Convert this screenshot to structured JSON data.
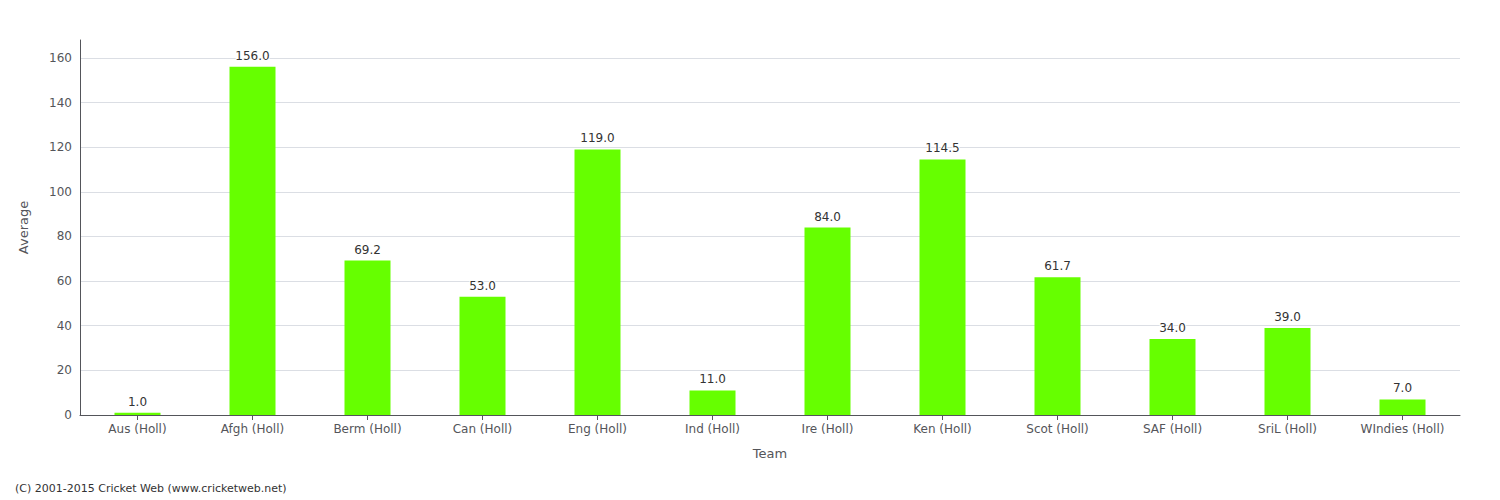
{
  "chart_data": {
    "type": "bar",
    "categories": [
      "Aus (Holl)",
      "Afgh (Holl)",
      "Berm (Holl)",
      "Can (Holl)",
      "Eng (Holl)",
      "Ind (Holl)",
      "Ire (Holl)",
      "Ken (Holl)",
      "Scot (Holl)",
      "SAF (Holl)",
      "SriL (Holl)",
      "WIndies (Holl)"
    ],
    "values": [
      1.0,
      156.0,
      69.2,
      53.0,
      119.0,
      11.0,
      84.0,
      114.5,
      61.7,
      34.0,
      39.0,
      7.0
    ],
    "value_labels": [
      "1.0",
      "156.0",
      "69.2",
      "53.0",
      "119.0",
      "11.0",
      "84.0",
      "114.5",
      "61.7",
      "34.0",
      "39.0",
      "7.0"
    ],
    "data_labels": true,
    "color": "#66ff00",
    "xlabel": "Team",
    "ylabel": "Average",
    "ylim": [
      0,
      168
    ],
    "yticks": [
      0,
      20,
      40,
      60,
      80,
      100,
      120,
      140,
      160
    ],
    "grid": true,
    "annotations": [
      "(C) 2001-2015 Cricket Web (www.cricketweb.net)"
    ]
  }
}
